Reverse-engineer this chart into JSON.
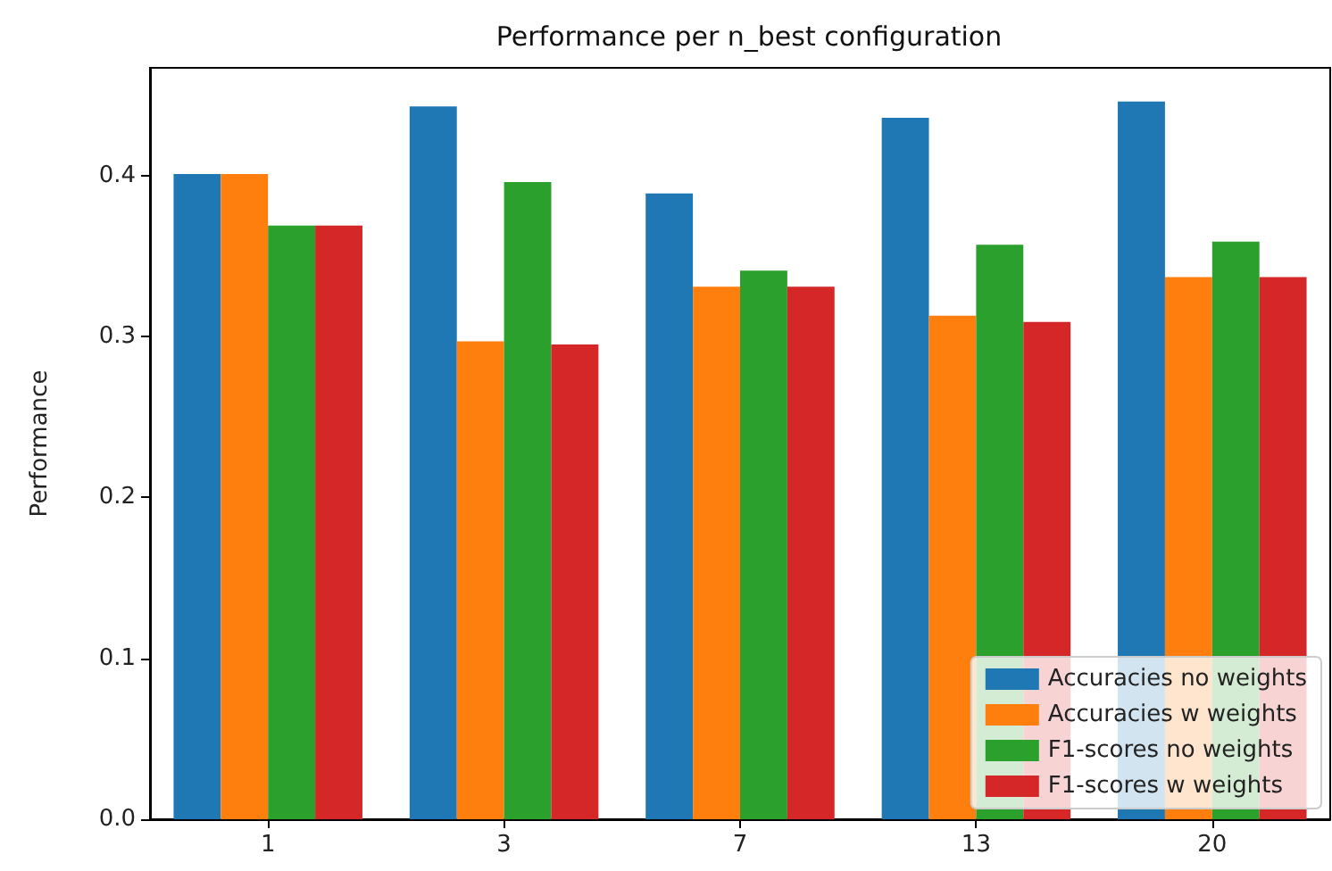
{
  "chart_data": {
    "type": "bar",
    "title": "Performance per n_best configuration",
    "ylabel": "Performance",
    "categories": [
      "1",
      "3",
      "7",
      "13",
      "20"
    ],
    "series": [
      {
        "name": "Accuracies no weights",
        "color": "#1f77b4",
        "values": [
          0.401,
          0.443,
          0.389,
          0.436,
          0.446
        ]
      },
      {
        "name": "Accuracies w weights",
        "color": "#ff7f0e",
        "values": [
          0.401,
          0.297,
          0.331,
          0.313,
          0.337
        ]
      },
      {
        "name": "F1-scores no weights",
        "color": "#2ca02c",
        "values": [
          0.369,
          0.396,
          0.341,
          0.357,
          0.359
        ]
      },
      {
        "name": "F1-scores w weights",
        "color": "#d62728",
        "values": [
          0.369,
          0.295,
          0.331,
          0.309,
          0.337
        ]
      }
    ],
    "ylim": [
      0,
      0.467
    ],
    "yticks": [
      {
        "value": 0,
        "label": "0.0"
      },
      0.1,
      0.2,
      0.3,
      0.4
    ],
    "grid": false,
    "legend": "bottom right"
  }
}
